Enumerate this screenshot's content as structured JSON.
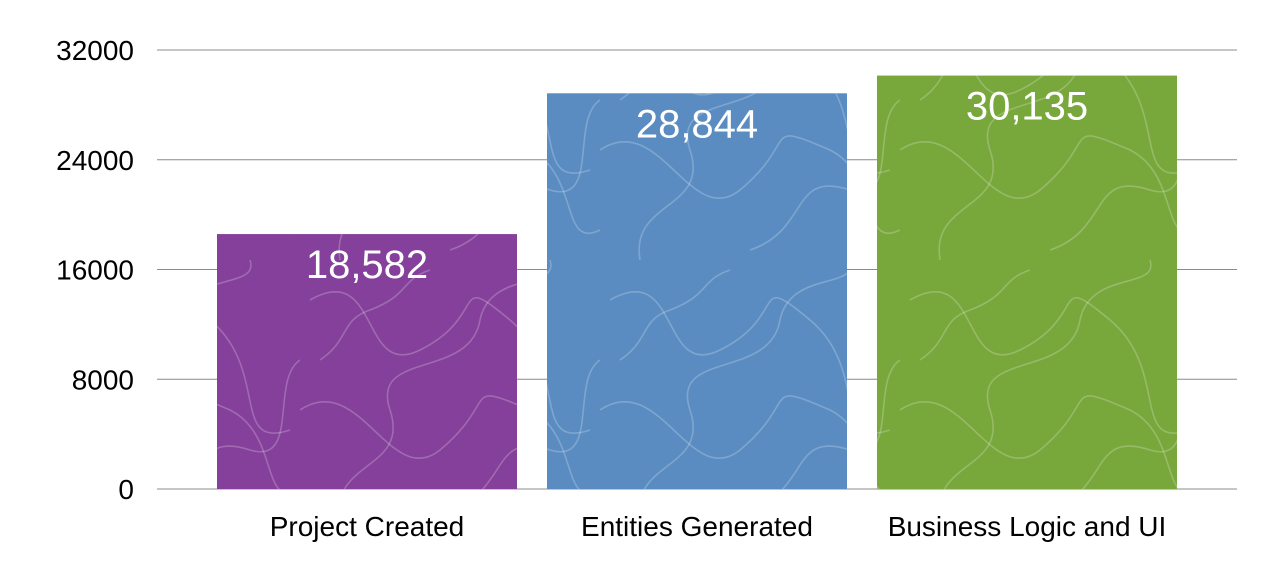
{
  "chart_data": {
    "type": "bar",
    "categories": [
      "Project Created",
      "Entities Generated",
      "Business Logic and UI"
    ],
    "values": [
      18582,
      28844,
      30135
    ],
    "data_labels": [
      "18,582",
      "28,844",
      "30,135"
    ],
    "colors": [
      "#84409a",
      "#5a8cc1",
      "#78a73c"
    ],
    "title": "",
    "xlabel": "",
    "ylabel": "",
    "ylim": [
      0,
      32000
    ],
    "yticks": [
      0,
      8000,
      16000,
      24000,
      32000
    ],
    "grid": true,
    "legend": "none"
  }
}
